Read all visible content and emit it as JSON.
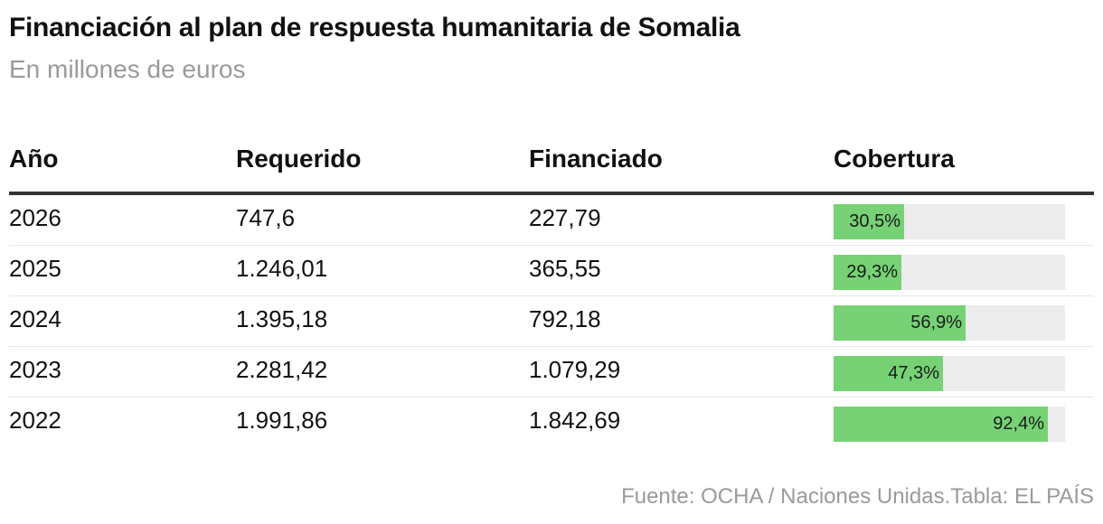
{
  "title": "Financiación al plan de respuesta humanitaria de Somalia",
  "subtitle": "En millones de euros",
  "source": "Fuente: OCHA / Naciones Unidas.Tabla: EL PAÍS",
  "colors": {
    "bar": "#76d275",
    "track": "#ececec"
  },
  "chart_data": {
    "type": "table",
    "title": "Financiación al plan de respuesta humanitaria de Somalia",
    "subtitle": "En millones de euros",
    "columns": [
      "Año",
      "Requerido",
      "Financiado",
      "Cobertura"
    ],
    "rows": [
      {
        "year": "2026",
        "required": "747,6",
        "funded": "227,79",
        "coverage": 30.5,
        "coverage_label": "30,5%"
      },
      {
        "year": "2025",
        "required": "1.246,01",
        "funded": "365,55",
        "coverage": 29.3,
        "coverage_label": "29,3%"
      },
      {
        "year": "2024",
        "required": "1.395,18",
        "funded": "792,18",
        "coverage": 56.9,
        "coverage_label": "56,9%"
      },
      {
        "year": "2023",
        "required": "2.281,42",
        "funded": "1.079,29",
        "coverage": 47.3,
        "coverage_label": "47,3%"
      },
      {
        "year": "2022",
        "required": "1.991,86",
        "funded": "1.842,69",
        "coverage": 92.4,
        "coverage_label": "92,4%"
      }
    ]
  }
}
